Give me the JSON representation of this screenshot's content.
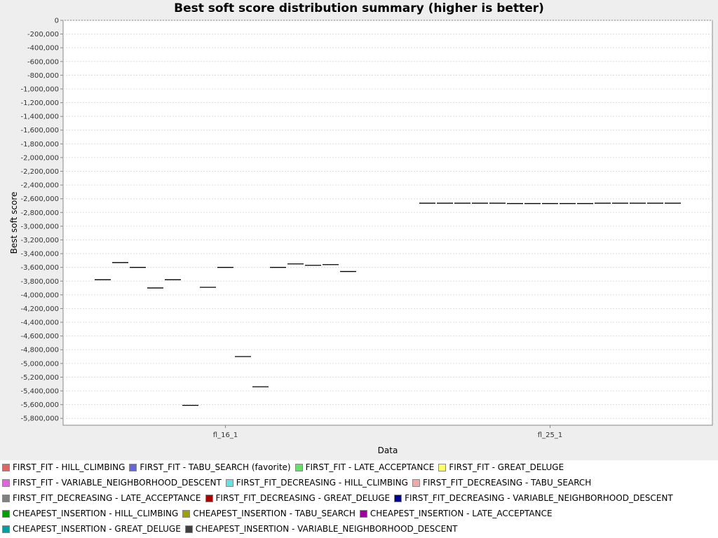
{
  "chart_data": {
    "type": "boxplot",
    "title": "Best soft score distribution summary (higher is better)",
    "xlabel": "Data",
    "ylabel": "Best soft score",
    "ylim": [
      -5900000,
      0
    ],
    "ytick_step": 200000,
    "grid": true,
    "legend_position": "bottom",
    "categories": [
      "fl_16_1",
      "fl_25_1"
    ],
    "series": [
      {
        "name": "FIRST_FIT - HILL_CLIMBING",
        "color": "#e06666",
        "values": [
          -3780000,
          -2665000
        ]
      },
      {
        "name": "FIRST_FIT - TABU_SEARCH (favorite)",
        "color": "#6666e0",
        "values": [
          -3530000,
          -2665000
        ]
      },
      {
        "name": "FIRST_FIT - LATE_ACCEPTANCE",
        "color": "#66e066",
        "values": [
          -3600000,
          -2665000
        ]
      },
      {
        "name": "FIRST_FIT - GREAT_DELUGE",
        "color": "#ffff66",
        "values": [
          -3900000,
          -2665000
        ]
      },
      {
        "name": "FIRST_FIT - VARIABLE_NEIGHBORHOOD_DESCENT",
        "color": "#e066e0",
        "values": [
          -3780000,
          -2665000
        ]
      },
      {
        "name": "FIRST_FIT_DECREASING - HILL_CLIMBING",
        "color": "#66e0e0",
        "values": [
          -5610000,
          -2670000
        ]
      },
      {
        "name": "FIRST_FIT_DECREASING - TABU_SEARCH",
        "color": "#f0a8a8",
        "values": [
          -3890000,
          -2670000
        ]
      },
      {
        "name": "FIRST_FIT_DECREASING - LATE_ACCEPTANCE",
        "color": "#808080",
        "values": [
          -3600000,
          -2670000
        ]
      },
      {
        "name": "FIRST_FIT_DECREASING - GREAT_DELUGE",
        "color": "#b00000",
        "values": [
          -4900000,
          -2670000
        ]
      },
      {
        "name": "FIRST_FIT_DECREASING - VARIABLE_NEIGHBORHOOD_DESCENT",
        "color": "#0000a0",
        "values": [
          -5340000,
          -2670000
        ]
      },
      {
        "name": "CHEAPEST_INSERTION - HILL_CLIMBING",
        "color": "#00a000",
        "values": [
          -3600000,
          -2665000
        ]
      },
      {
        "name": "CHEAPEST_INSERTION - TABU_SEARCH",
        "color": "#a0a000",
        "values": [
          -3550000,
          -2665000
        ]
      },
      {
        "name": "CHEAPEST_INSERTION - LATE_ACCEPTANCE",
        "color": "#a000a0",
        "values": [
          -3570000,
          -2665000
        ]
      },
      {
        "name": "CHEAPEST_INSERTION - GREAT_DELUGE",
        "color": "#00a0a0",
        "values": [
          -3560000,
          -2665000
        ]
      },
      {
        "name": "CHEAPEST_INSERTION - VARIABLE_NEIGHBORHOOD_DESCENT",
        "color": "#404040",
        "values": [
          -3660000,
          -2665000
        ]
      }
    ]
  }
}
